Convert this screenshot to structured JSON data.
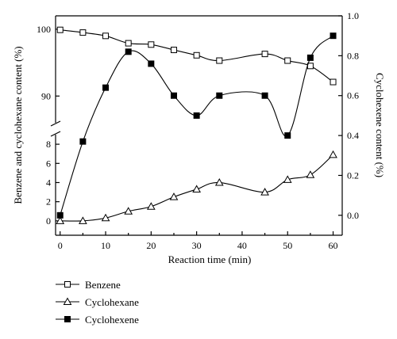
{
  "chart_data": {
    "type": "line",
    "xlabel": "Reaction time (min)",
    "ylabel_left": "Benzene and cyclohexane content (%)",
    "ylabel_right": "Cyclohexene content (%)",
    "x_ticks": [
      "0",
      "10",
      "20",
      "30",
      "40",
      "50",
      "60"
    ],
    "left_ticks_upper": [
      "90",
      "100"
    ],
    "left_ticks_lower": [
      "0",
      "2",
      "4",
      "6",
      "8"
    ],
    "right_ticks": [
      "0.0",
      "0.2",
      "0.4",
      "0.6",
      "0.8",
      "1.0"
    ],
    "xlim": [
      -1,
      62
    ],
    "ylim_left_upper": [
      86,
      102
    ],
    "ylim_left_lower": [
      -1.5,
      9
    ],
    "ylim_right": [
      -0.1,
      1.0
    ],
    "series": [
      {
        "name": "Benzene",
        "marker": "open-square",
        "axis": "left",
        "x": [
          0,
          5,
          10,
          15,
          20,
          25,
          30,
          35,
          45,
          50,
          55,
          60
        ],
        "values": [
          99.9,
          99.5,
          99.0,
          97.9,
          97.7,
          96.9,
          96.1,
          95.3,
          96.3,
          95.3,
          94.5,
          92.1
        ]
      },
      {
        "name": "Cyclohexane",
        "marker": "open-triangle",
        "axis": "left",
        "x": [
          0,
          5,
          10,
          15,
          20,
          25,
          30,
          35,
          45,
          50,
          55,
          60
        ],
        "values": [
          0.0,
          0.0,
          0.3,
          1.0,
          1.5,
          2.5,
          3.3,
          4.0,
          3.0,
          4.3,
          4.8,
          6.9
        ]
      },
      {
        "name": "Cyclohexene",
        "marker": "filled-square",
        "axis": "right",
        "x": [
          0,
          5,
          10,
          15,
          20,
          25,
          30,
          35,
          45,
          50,
          55,
          60
        ],
        "values": [
          0.0,
          0.37,
          0.64,
          0.82,
          0.76,
          0.6,
          0.5,
          0.6,
          0.6,
          0.4,
          0.79,
          0.9
        ]
      }
    ],
    "legend_position": "bottom-left"
  }
}
